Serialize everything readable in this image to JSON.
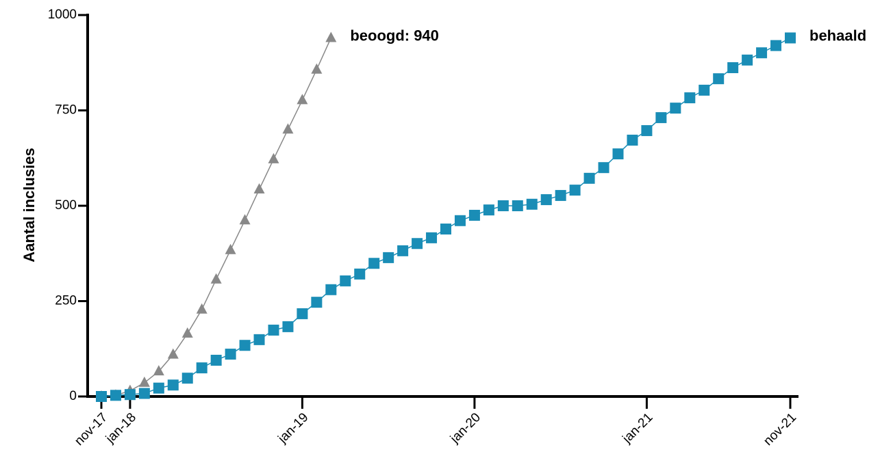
{
  "chart_data": {
    "type": "line",
    "y_label": "Aantal inclusies",
    "categories": [
      "nov-17",
      null,
      "jan-18",
      null,
      null,
      null,
      null,
      null,
      null,
      null,
      null,
      null,
      null,
      null,
      "jan-19",
      null,
      null,
      null,
      null,
      null,
      null,
      null,
      null,
      null,
      null,
      null,
      "jan-20",
      null,
      null,
      null,
      null,
      null,
      null,
      null,
      null,
      null,
      null,
      null,
      "jan-21",
      null,
      null,
      null,
      null,
      null,
      null,
      null,
      null,
      null,
      "nov-21"
    ],
    "series": [
      {
        "name": "beoogd: 940",
        "color": "#888888",
        "marker": "triangle",
        "values": [
          0,
          3,
          15,
          36,
          66,
          110,
          165,
          228,
          307,
          384,
          462,
          543,
          622,
          700,
          777,
          857,
          940,
          null,
          null,
          null,
          null,
          null,
          null,
          null,
          null,
          null,
          null,
          null,
          null,
          null,
          null,
          null,
          null,
          null,
          null,
          null,
          null,
          null,
          null,
          null,
          null,
          null,
          null,
          null,
          null,
          null,
          null,
          null,
          null
        ]
      },
      {
        "name": "behaald",
        "color": "#1a8db6",
        "marker": "square",
        "values": [
          0,
          3,
          5,
          8,
          22,
          30,
          48,
          75,
          95,
          111,
          134,
          149,
          174,
          183,
          217,
          247,
          280,
          303,
          321,
          349,
          364,
          382,
          401,
          416,
          439,
          461,
          475,
          489,
          500,
          500,
          504,
          516,
          527,
          541,
          572,
          600,
          636,
          672,
          697,
          731,
          756,
          783,
          803,
          833,
          862,
          882,
          901,
          920,
          940
        ]
      }
    ],
    "ylim": [
      0,
      1000
    ],
    "yticks": [
      0,
      250,
      500,
      750,
      1000
    ]
  }
}
